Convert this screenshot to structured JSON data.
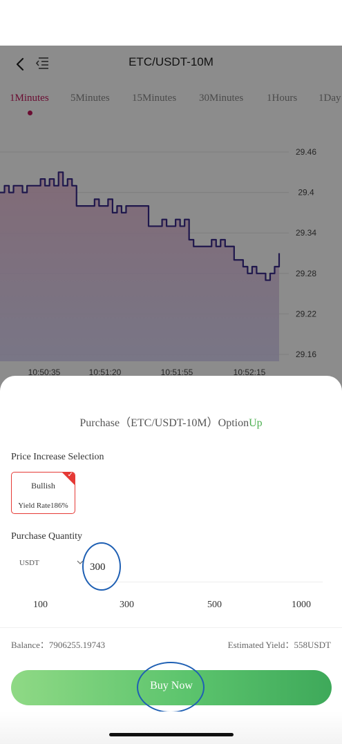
{
  "header": {
    "pair_title": "ETC/USDT-10M"
  },
  "tabs": [
    {
      "label": "1Minutes",
      "active": true
    },
    {
      "label": "5Minutes",
      "active": false
    },
    {
      "label": "15Minutes",
      "active": false
    },
    {
      "label": "30Minutes",
      "active": false
    },
    {
      "label": "1Hours",
      "active": false
    },
    {
      "label": "1Day",
      "active": false
    }
  ],
  "chart_data": {
    "type": "line",
    "y_ticks": [
      "29.46",
      "29.4",
      "29.34",
      "29.28",
      "29.22",
      "29.16"
    ],
    "x_ticks": [
      "10:50:35",
      "10:51:20",
      "10:51:55",
      "10:52:15"
    ],
    "ylim": [
      29.16,
      29.46
    ],
    "values": [
      29.4,
      29.41,
      29.4,
      29.41,
      29.41,
      29.4,
      29.41,
      29.41,
      29.41,
      29.42,
      29.41,
      29.42,
      29.41,
      29.43,
      29.41,
      29.42,
      29.41,
      29.38,
      29.38,
      29.38,
      29.38,
      29.39,
      29.38,
      29.38,
      29.39,
      29.37,
      29.38,
      29.37,
      29.38,
      29.38,
      29.38,
      29.38,
      29.38,
      29.35,
      29.35,
      29.35,
      29.36,
      29.35,
      29.35,
      29.36,
      29.35,
      29.36,
      29.33,
      29.32,
      29.32,
      29.32,
      29.32,
      29.33,
      29.32,
      29.33,
      29.32,
      29.32,
      29.3,
      29.3,
      29.29,
      29.28,
      29.29,
      29.28,
      29.28,
      29.27,
      29.28,
      29.29,
      29.31
    ],
    "line_color": "#3a2a8a",
    "grid": true
  },
  "purchase": {
    "title_prefix": "Purchase（ETC/USDT-10M）Option",
    "title_direction": "Up",
    "selection_label": "Price Increase Selection",
    "option_name": "Bullish",
    "option_rate": "Yield Rate186%",
    "quantity_label": "Purchase Quantity",
    "currency": "USDT",
    "quantity_value": "300",
    "presets": [
      "100",
      "300",
      "500",
      "1000"
    ],
    "balance": "Balance：7906255.19743",
    "estimated_yield": "Estimated Yield：558USDT",
    "buy_label": "Buy Now"
  },
  "colors": {
    "accent_up": "#4caf50",
    "tab_active": "#c2185b",
    "card_border": "#e53935",
    "annotation_circle": "#1e5fb3"
  },
  "icons": {
    "back": "back-icon",
    "list": "list-icon",
    "dropdown": "chevron-down-icon",
    "checkmark": "check-icon"
  }
}
